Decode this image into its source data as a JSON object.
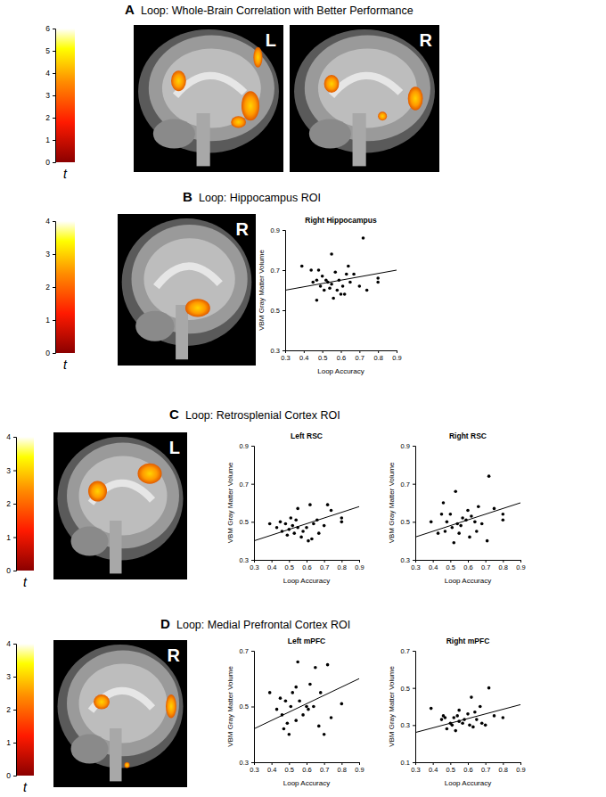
{
  "panels": [
    {
      "letter": "A",
      "title": "Loop: Whole-Brain Correlation with Better Performance",
      "brain_labels": [
        "L",
        "R"
      ]
    },
    {
      "letter": "B",
      "title": "Loop: Hippocampus ROI",
      "brain_labels": [
        "R"
      ]
    },
    {
      "letter": "C",
      "title": "Loop: Retrosplenial Cortex ROI",
      "brain_labels": [
        "L"
      ]
    },
    {
      "letter": "D",
      "title": "Loop: Medial Prefrontal Cortex ROI",
      "brain_labels": [
        "R"
      ]
    }
  ],
  "chart_data": [
    {
      "type": "colorbar",
      "title": "t",
      "ylim": [
        0,
        6
      ],
      "yticks": [
        0,
        1,
        2,
        3,
        4,
        5,
        6
      ]
    },
    {
      "type": "colorbar",
      "title": "t",
      "ylim": [
        0,
        4
      ],
      "yticks": [
        0,
        1,
        2,
        3,
        4
      ]
    },
    {
      "type": "scatter",
      "title": "Right Hippocampus",
      "x_label": "Loop Accuracy",
      "y_label": "VBM Gray Matter Volume",
      "color": "#000000",
      "marker": "circle",
      "x": [
        0.39,
        0.44,
        0.45,
        0.47,
        0.47,
        0.48,
        0.49,
        0.5,
        0.51,
        0.52,
        0.53,
        0.54,
        0.55,
        0.55,
        0.56,
        0.57,
        0.58,
        0.59,
        0.6,
        0.61,
        0.62,
        0.63,
        0.64,
        0.65,
        0.67,
        0.7,
        0.72,
        0.74,
        0.8,
        0.8
      ],
      "values": [
        0.72,
        0.7,
        0.64,
        0.55,
        0.65,
        0.7,
        0.62,
        0.67,
        0.6,
        0.65,
        0.64,
        0.61,
        0.78,
        0.63,
        0.56,
        0.69,
        0.6,
        0.65,
        0.58,
        0.62,
        0.58,
        0.68,
        0.72,
        0.64,
        0.68,
        0.62,
        0.86,
        0.6,
        0.66,
        0.64
      ],
      "fit_line": {
        "x": [
          0.3,
          0.9
        ],
        "values": [
          0.6,
          0.7
        ]
      },
      "xlim": [
        0.3,
        0.9
      ],
      "xticks": [
        0.3,
        0.4,
        0.5,
        0.6,
        0.7,
        0.8,
        0.9
      ],
      "ylim": [
        0.3,
        0.9
      ],
      "yticks": [
        0.3,
        0.5,
        0.7,
        0.9
      ]
    },
    {
      "type": "colorbar",
      "title": "t",
      "ylim": [
        0,
        4
      ],
      "yticks": [
        0,
        1,
        2,
        3,
        4
      ]
    },
    {
      "type": "scatter",
      "title": "Left RSC",
      "x_label": "Loop Accuracy",
      "y_label": "VBM Gray Matter Volume",
      "color": "#000000",
      "marker": "circle",
      "x": [
        0.39,
        0.43,
        0.45,
        0.46,
        0.48,
        0.49,
        0.5,
        0.51,
        0.52,
        0.53,
        0.54,
        0.55,
        0.55,
        0.57,
        0.58,
        0.6,
        0.61,
        0.62,
        0.63,
        0.64,
        0.66,
        0.67,
        0.7,
        0.72,
        0.74,
        0.8,
        0.8
      ],
      "values": [
        0.49,
        0.47,
        0.5,
        0.45,
        0.49,
        0.43,
        0.46,
        0.52,
        0.48,
        0.44,
        0.51,
        0.57,
        0.47,
        0.42,
        0.45,
        0.47,
        0.4,
        0.59,
        0.41,
        0.49,
        0.51,
        0.44,
        0.48,
        0.59,
        0.56,
        0.52,
        0.5
      ],
      "fit_line": {
        "x": [
          0.3,
          0.9
        ],
        "values": [
          0.4,
          0.58
        ]
      },
      "xlim": [
        0.3,
        0.9
      ],
      "xticks": [
        0.3,
        0.4,
        0.5,
        0.6,
        0.7,
        0.8,
        0.9
      ],
      "ylim": [
        0.3,
        0.9
      ],
      "yticks": [
        0.3,
        0.5,
        0.7,
        0.9
      ]
    },
    {
      "type": "scatter",
      "title": "Right RSC",
      "x_label": "Loop Accuracy",
      "y_label": "VBM Gray Matter Volume",
      "color": "#000000",
      "marker": "circle",
      "x": [
        0.39,
        0.43,
        0.45,
        0.46,
        0.47,
        0.48,
        0.5,
        0.51,
        0.52,
        0.53,
        0.54,
        0.55,
        0.56,
        0.57,
        0.59,
        0.6,
        0.61,
        0.62,
        0.64,
        0.65,
        0.66,
        0.68,
        0.71,
        0.72,
        0.75,
        0.8,
        0.8
      ],
      "values": [
        0.5,
        0.44,
        0.54,
        0.6,
        0.45,
        0.5,
        0.54,
        0.47,
        0.39,
        0.66,
        0.49,
        0.44,
        0.48,
        0.52,
        0.51,
        0.56,
        0.42,
        0.53,
        0.5,
        0.45,
        0.58,
        0.49,
        0.4,
        0.74,
        0.57,
        0.54,
        0.51
      ],
      "fit_line": {
        "x": [
          0.3,
          0.9
        ],
        "values": [
          0.42,
          0.6
        ]
      },
      "xlim": [
        0.3,
        0.9
      ],
      "xticks": [
        0.3,
        0.4,
        0.5,
        0.6,
        0.7,
        0.8,
        0.9
      ],
      "ylim": [
        0.3,
        0.9
      ],
      "yticks": [
        0.3,
        0.5,
        0.7,
        0.9
      ]
    },
    {
      "type": "colorbar",
      "title": "t",
      "ylim": [
        0,
        4
      ],
      "yticks": [
        0,
        1,
        2,
        3,
        4
      ]
    },
    {
      "type": "scatter",
      "title": "Left mPFC",
      "x_label": "Loop Accuracy",
      "y_label": "VBM Gray Matter Volume",
      "color": "#000000",
      "marker": "circle",
      "x": [
        0.39,
        0.43,
        0.45,
        0.46,
        0.47,
        0.48,
        0.49,
        0.5,
        0.51,
        0.52,
        0.54,
        0.54,
        0.55,
        0.56,
        0.58,
        0.6,
        0.61,
        0.62,
        0.64,
        0.65,
        0.67,
        0.68,
        0.7,
        0.72,
        0.74,
        0.8
      ],
      "values": [
        0.55,
        0.49,
        0.53,
        0.47,
        0.42,
        0.52,
        0.44,
        0.4,
        0.5,
        0.55,
        0.57,
        0.45,
        0.66,
        0.52,
        0.47,
        0.5,
        0.49,
        0.58,
        0.5,
        0.64,
        0.43,
        0.55,
        0.4,
        0.65,
        0.46,
        0.51
      ],
      "fit_line": {
        "x": [
          0.3,
          0.9
        ],
        "values": [
          0.42,
          0.6
        ]
      },
      "xlim": [
        0.3,
        0.9
      ],
      "xticks": [
        0.3,
        0.4,
        0.5,
        0.6,
        0.7,
        0.8,
        0.9
      ],
      "ylim": [
        0.3,
        0.7
      ],
      "yticks": [
        0.3,
        0.5,
        0.7
      ]
    },
    {
      "type": "scatter",
      "title": "Right mPFC",
      "x_label": "Loop Accuracy",
      "y_label": "VBM Gray Matter Volume",
      "color": "#000000",
      "marker": "circle",
      "x": [
        0.39,
        0.45,
        0.46,
        0.47,
        0.48,
        0.5,
        0.51,
        0.52,
        0.53,
        0.54,
        0.55,
        0.55,
        0.57,
        0.58,
        0.6,
        0.61,
        0.62,
        0.63,
        0.64,
        0.65,
        0.67,
        0.68,
        0.7,
        0.72,
        0.75,
        0.8
      ],
      "values": [
        0.39,
        0.33,
        0.35,
        0.34,
        0.28,
        0.31,
        0.3,
        0.34,
        0.27,
        0.35,
        0.38,
        0.32,
        0.31,
        0.33,
        0.36,
        0.3,
        0.45,
        0.29,
        0.37,
        0.33,
        0.4,
        0.31,
        0.3,
        0.5,
        0.35,
        0.34
      ],
      "fit_line": {
        "x": [
          0.3,
          0.9
        ],
        "values": [
          0.26,
          0.41
        ]
      },
      "xlim": [
        0.3,
        0.9
      ],
      "xticks": [
        0.3,
        0.4,
        0.5,
        0.6,
        0.7,
        0.8,
        0.9
      ],
      "ylim": [
        0.1,
        0.7
      ],
      "yticks": [
        0.1,
        0.3,
        0.5,
        0.7
      ]
    }
  ]
}
